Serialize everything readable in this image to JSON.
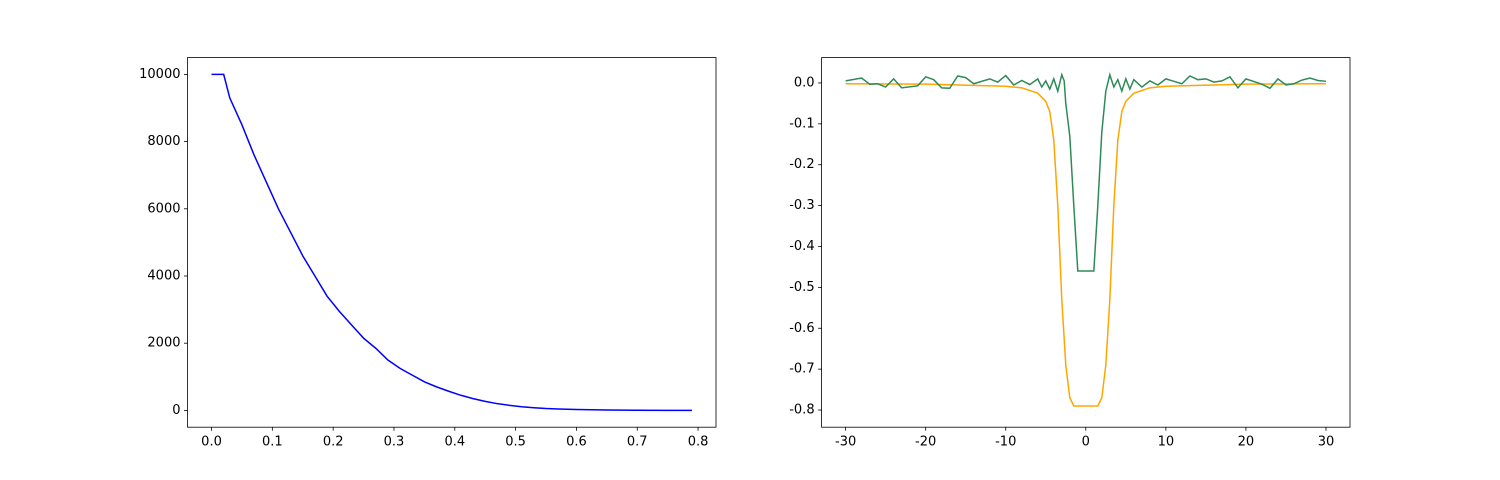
{
  "chart_data": [
    {
      "type": "line",
      "series": [
        {
          "color": "#0000ff",
          "x": [
            0,
            0.02,
            0.03,
            0.05,
            0.07,
            0.09,
            0.11,
            0.13,
            0.15,
            0.17,
            0.19,
            0.21,
            0.23,
            0.25,
            0.27,
            0.29,
            0.31,
            0.33,
            0.35,
            0.37,
            0.39,
            0.41,
            0.43,
            0.45,
            0.47,
            0.49,
            0.51,
            0.53,
            0.55,
            0.57,
            0.6,
            0.65,
            0.7,
            0.75,
            0.79
          ],
          "values": [
            10000,
            10000,
            9300,
            8500,
            7600,
            6800,
            6000,
            5300,
            4600,
            4000,
            3400,
            2950,
            2550,
            2150,
            1850,
            1500,
            1250,
            1050,
            850,
            700,
            570,
            450,
            350,
            270,
            200,
            150,
            110,
            80,
            55,
            40,
            25,
            10,
            3,
            1,
            0
          ]
        }
      ],
      "xlim": [
        -0.0395,
        0.8295
      ],
      "xticks": [
        {
          "value": 0,
          "label": "0.0"
        },
        0.1,
        0.2,
        0.3,
        0.4,
        0.5,
        0.6,
        0.7,
        0.8
      ],
      "ylim": [
        -500,
        10500
      ],
      "yticks": [
        0,
        2000,
        4000,
        6000,
        8000,
        10000
      ]
    },
    {
      "type": "line",
      "series": [
        {
          "color": "#ffa500",
          "x": [
            -30,
            -20,
            -10,
            -8,
            -6,
            -5,
            -4.5,
            -4,
            -3.5,
            -3,
            -2.5,
            -2,
            -1.5,
            -1,
            1,
            1.5,
            2,
            2.5,
            3,
            3.5,
            4,
            4.5,
            5,
            6,
            8,
            10,
            20,
            30
          ],
          "values": [
            -0.002,
            -0.003,
            -0.008,
            -0.012,
            -0.025,
            -0.045,
            -0.07,
            -0.14,
            -0.3,
            -0.53,
            -0.69,
            -0.77,
            -0.79,
            -0.79,
            -0.79,
            -0.79,
            -0.77,
            -0.69,
            -0.53,
            -0.3,
            -0.14,
            -0.07,
            -0.045,
            -0.025,
            -0.012,
            -0.008,
            -0.003,
            -0.002
          ]
        },
        {
          "color": "#2e8b57",
          "x": [
            -30,
            -28,
            -27,
            -26,
            -25,
            -24,
            -23,
            -21,
            -20,
            -19,
            -18,
            -17,
            -16,
            -15,
            -14,
            -12,
            -11,
            -10,
            -9,
            -8,
            -7,
            -6,
            -5.5,
            -5,
            -4.5,
            -4,
            -3.5,
            -3,
            -2.7,
            -2.5,
            -2,
            -1.5,
            -1,
            1,
            1.5,
            2,
            2.5,
            3,
            3.5,
            4,
            4.5,
            5,
            5.5,
            6,
            7,
            8,
            9,
            10,
            11,
            12,
            13,
            14,
            15,
            16,
            17,
            18,
            19,
            20,
            22,
            23,
            24,
            25,
            26,
            27,
            28,
            29,
            30
          ],
          "values": [
            0.005,
            0.012,
            -0.003,
            -0.002,
            -0.01,
            0.01,
            -0.012,
            -0.007,
            0.015,
            0.008,
            -0.012,
            -0.013,
            0.017,
            0.013,
            -0.002,
            0.01,
            0.002,
            0.018,
            -0.005,
            0.006,
            -0.004,
            0.01,
            -0.01,
            0.005,
            -0.015,
            0.01,
            -0.02,
            0.02,
            0.005,
            -0.05,
            -0.13,
            -0.3,
            -0.46,
            -0.46,
            -0.3,
            -0.12,
            -0.02,
            0.02,
            -0.01,
            0.008,
            -0.02,
            0.01,
            -0.015,
            0.008,
            -0.01,
            0.005,
            -0.005,
            0.01,
            0.004,
            -0.002,
            0.017,
            0.008,
            0.01,
            0.002,
            0.005,
            0.015,
            -0.012,
            0.01,
            -0.003,
            -0.013,
            0.01,
            -0.005,
            -0.002,
            0.007,
            0.012,
            0.006,
            0.004
          ]
        }
      ],
      "xlim": [
        -33,
        33
      ],
      "xticks": [
        -30,
        -20,
        -10,
        0,
        10,
        20,
        30
      ],
      "ylim": [
        -0.842,
        0.062
      ],
      "yticks": [
        {
          "value": 0,
          "label": "0.0"
        },
        -0.1,
        -0.2,
        -0.3,
        -0.4,
        -0.5,
        -0.6,
        -0.7,
        -0.8
      ]
    }
  ]
}
